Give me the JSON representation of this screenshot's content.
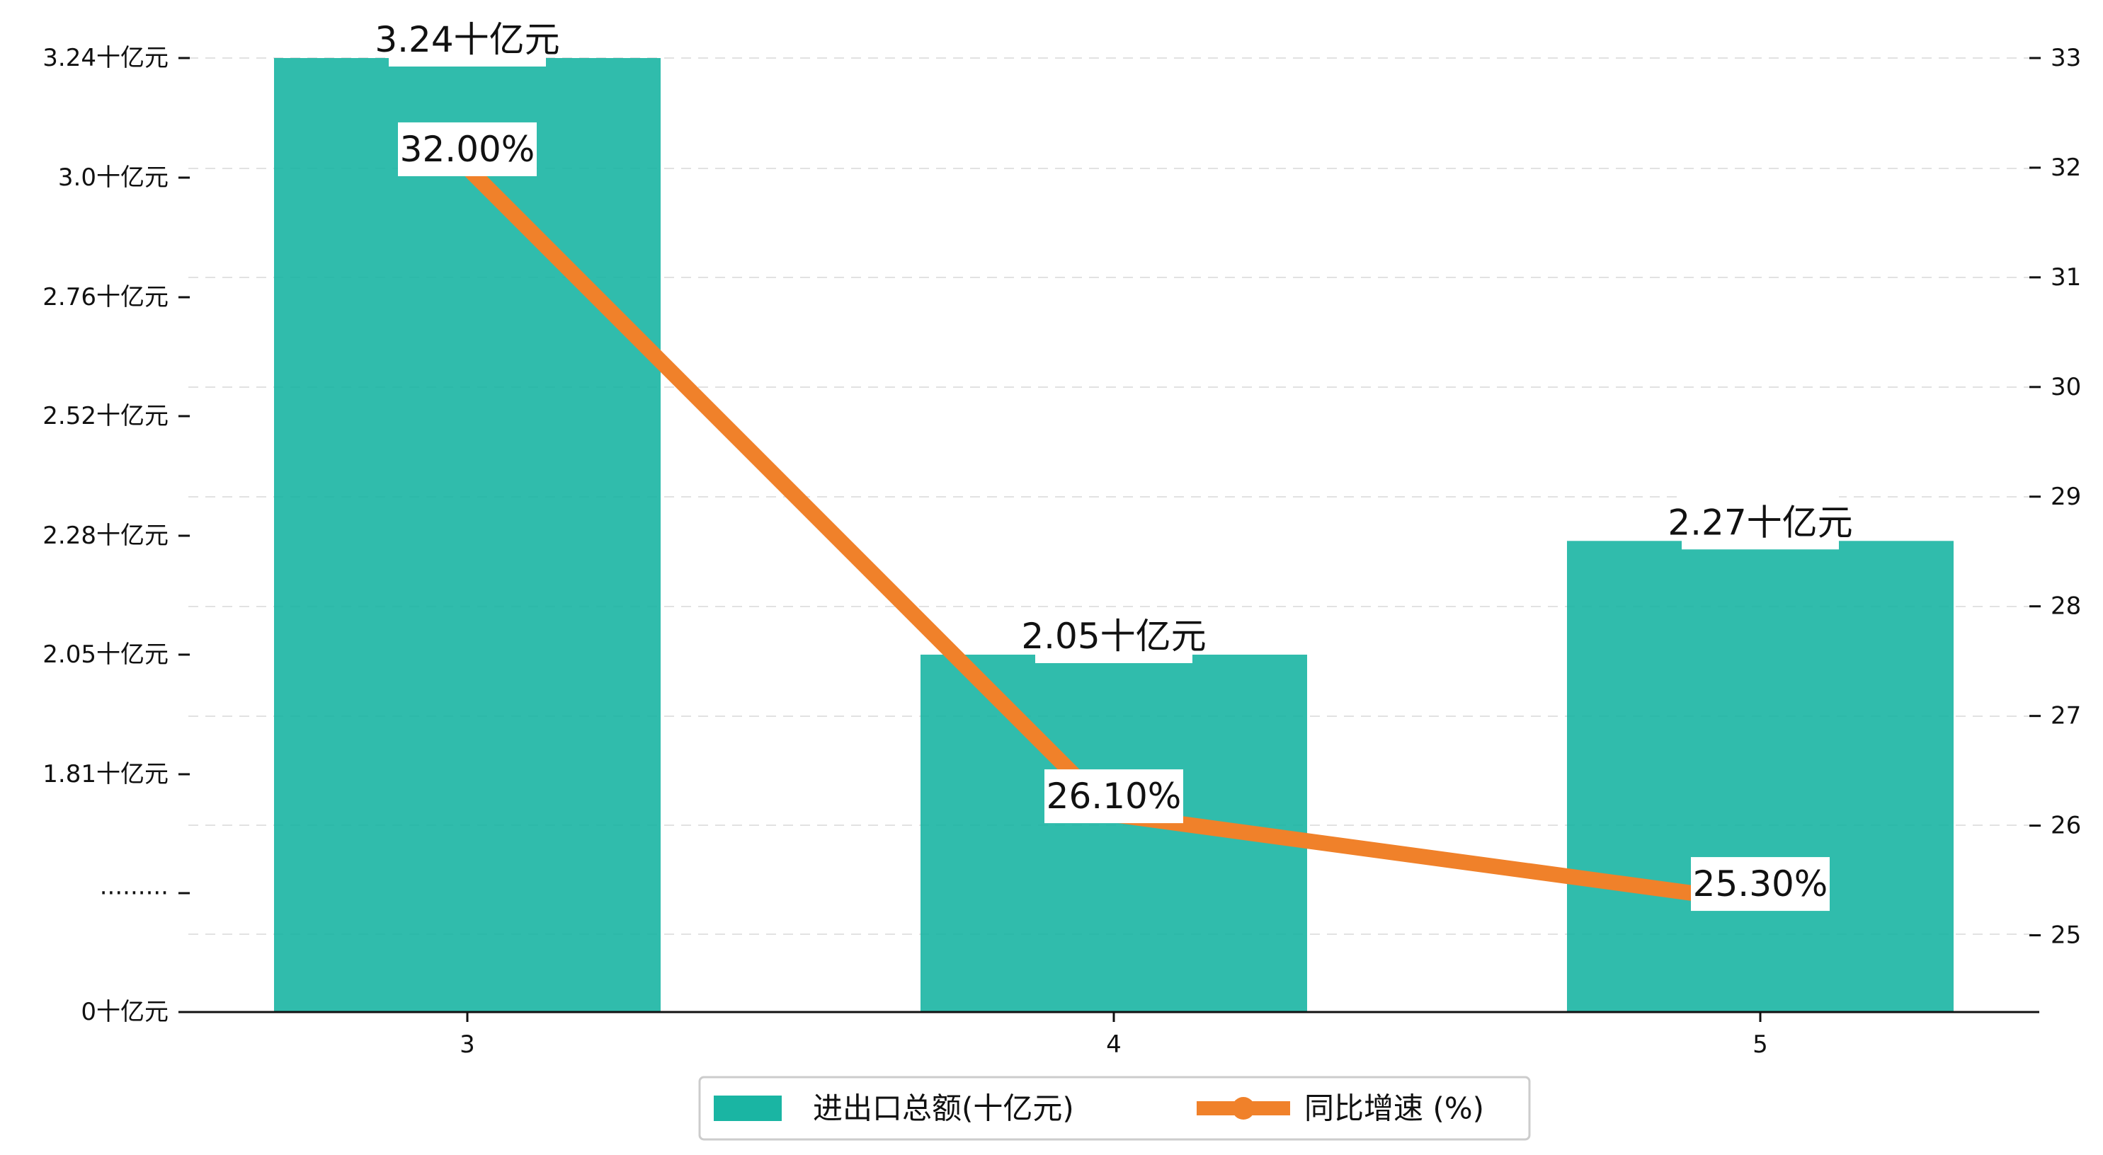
{
  "chart_data": {
    "type": "bar+line",
    "categories": [
      "3",
      "4",
      "5"
    ],
    "series": [
      {
        "name": "进出口总额(十亿元)",
        "type": "bar",
        "axis": "left",
        "values": [
          3.24,
          2.05,
          2.27
        ],
        "labels": [
          "3.24十亿元",
          "2.05十亿元",
          "2.27十亿元"
        ],
        "color": "#1ab5a3"
      },
      {
        "name": "同比增速 (%)",
        "type": "line",
        "axis": "right",
        "values": [
          32.0,
          26.1,
          25.3
        ],
        "labels": [
          "32.00%",
          "26.10%",
          "25.30%"
        ],
        "color": "#f0812a"
      }
    ],
    "y_left": {
      "ticks": [
        0,
        1.0,
        1.81,
        2.05,
        2.28,
        2.52,
        2.76,
        3.0,
        3.24
      ],
      "tick_labels": [
        "0十亿元",
        "·········",
        "1.81十亿元",
        "2.05十亿元",
        "2.28十亿元",
        "2.52十亿元",
        "2.76十亿元",
        "3.0十亿元",
        "3.24十亿元"
      ],
      "broken_axis": true
    },
    "y_right": {
      "ylim": [
        24.3,
        33
      ],
      "ticks": [
        25,
        26,
        27,
        28,
        29,
        30,
        31,
        32,
        33
      ]
    },
    "title": "",
    "xlabel": "",
    "ylabel": "",
    "grid": "horizontal-dashed",
    "legend_position": "bottom-center"
  }
}
